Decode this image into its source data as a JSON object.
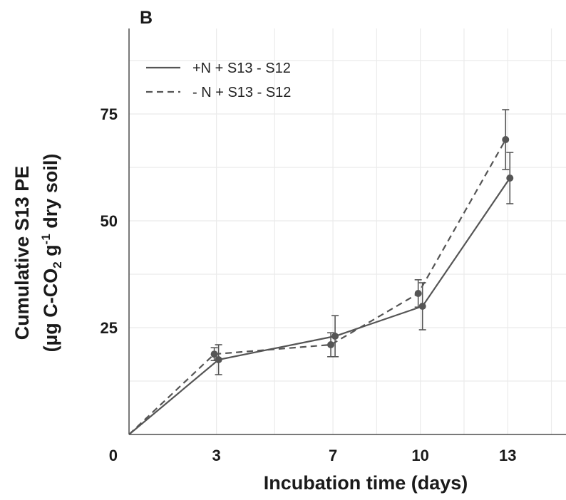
{
  "panel_label": "B",
  "colors": {
    "series": "#555555",
    "grid": "#ebebeb",
    "axis": "#4d4d4d"
  },
  "chart_data": {
    "type": "line",
    "title": "",
    "xlabel": "Incubation time (days)",
    "ylabel": {
      "line1": "Cumulative S13 PE",
      "line2_prefix": "(µg C-CO",
      "line2_sub": "2",
      "line2_mid": " g",
      "line2_sup": "-1",
      "line2_suffix": " dry soil)"
    },
    "xlim": [
      0,
      15
    ],
    "ylim": [
      0,
      95
    ],
    "x_ticks": [
      3,
      7,
      10,
      13
    ],
    "y_ticks": [
      25,
      50,
      75
    ],
    "origin_label": "0",
    "grid": true,
    "legend_position": "top-left",
    "series": [
      {
        "name": "+N + S13 - S12",
        "style": "solid",
        "x": [
          0,
          3,
          7,
          10,
          13
        ],
        "y": [
          0,
          17.5,
          23,
          30,
          60
        ],
        "err": [
          0,
          3.5,
          4.8,
          5.5,
          6
        ]
      },
      {
        "name": "- N + S13 - S12",
        "style": "dashed",
        "x": [
          0,
          3,
          7,
          10,
          13
        ],
        "y": [
          0,
          18.8,
          21,
          33,
          69
        ],
        "err": [
          0,
          1.5,
          2.8,
          3.2,
          7
        ]
      }
    ]
  }
}
